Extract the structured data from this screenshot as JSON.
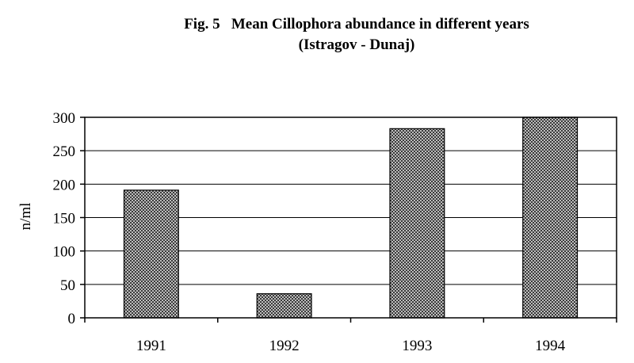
{
  "chart_data": {
    "type": "bar",
    "title": "Fig. 5   Mean Cillophora abundance in different years",
    "subtitle": "(Istragov - Dunaj)",
    "xlabel": "",
    "ylabel": "n/ml",
    "categories": [
      "1991",
      "1992",
      "1993",
      "1994"
    ],
    "values": [
      191,
      36,
      283,
      300
    ],
    "ylim": [
      0,
      300
    ],
    "yticks": [
      "0",
      "50",
      "100",
      "150",
      "200",
      "250",
      "300"
    ],
    "grid": true,
    "legend": "none",
    "bar_color": "#8a8a8a"
  }
}
